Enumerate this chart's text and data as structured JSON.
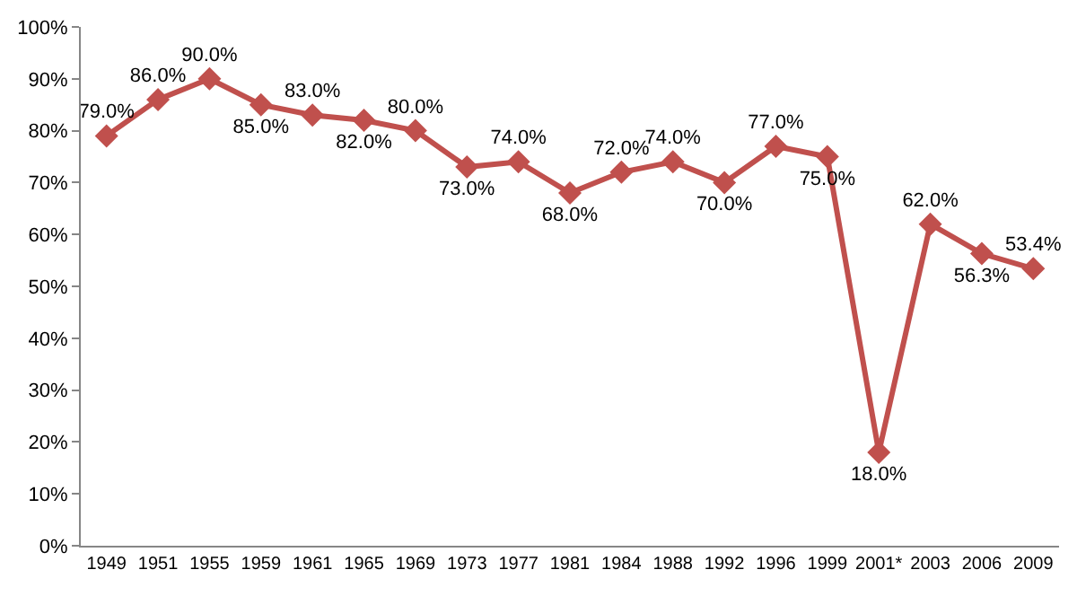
{
  "chart_data": {
    "type": "line",
    "categories": [
      "1949",
      "1951",
      "1955",
      "1959",
      "1961",
      "1965",
      "1969",
      "1973",
      "1977",
      "1981",
      "1984",
      "1988",
      "1992",
      "1996",
      "1999",
      "2001*",
      "2003",
      "2006",
      "2009"
    ],
    "series": [
      {
        "color": "#c0504d",
        "values": [
          79.0,
          86.0,
          90.0,
          85.0,
          83.0,
          82.0,
          80.0,
          73.0,
          74.0,
          68.0,
          72.0,
          74.0,
          70.0,
          77.0,
          75.0,
          18.0,
          62.0,
          56.3,
          53.4
        ],
        "value_labels": [
          "79.0%",
          "86.0%",
          "90.0%",
          "85.0%",
          "83.0%",
          "82.0%",
          "80.0%",
          "73.0%",
          "74.0%",
          "68.0%",
          "72.0%",
          "74.0%",
          "70.0%",
          "77.0%",
          "75.0%",
          "18.0%",
          "62.0%",
          "56.3%",
          "53.4%"
        ]
      }
    ],
    "ylim": [
      0,
      100
    ],
    "yticks": [
      {
        "value": 0,
        "label": "0%"
      },
      {
        "value": 10,
        "label": "10%"
      },
      {
        "value": 20,
        "label": "20%"
      },
      {
        "value": 30,
        "label": "30%"
      },
      {
        "value": 40,
        "label": "40%"
      },
      {
        "value": 50,
        "label": "50%"
      },
      {
        "value": 60,
        "label": "60%"
      },
      {
        "value": 70,
        "label": "70%"
      },
      {
        "value": 80,
        "label": "80%"
      },
      {
        "value": 90,
        "label": "90%"
      },
      {
        "value": 100,
        "label": "100%"
      }
    ],
    "marker": "diamond",
    "line_style": "solid"
  }
}
